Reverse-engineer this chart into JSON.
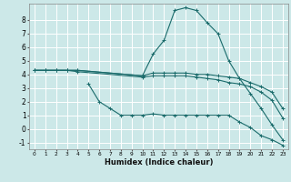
{
  "title": "",
  "xlabel": "Humidex (Indice chaleur)",
  "ylabel": "",
  "background_color": "#cce8e8",
  "grid_color": "#ffffff",
  "line_color": "#1a6b6b",
  "xlim": [
    -0.5,
    23.5
  ],
  "ylim": [
    -1.5,
    9.2
  ],
  "yticks": [
    -1,
    0,
    1,
    2,
    3,
    4,
    5,
    6,
    7,
    8
  ],
  "xticks": [
    0,
    1,
    2,
    3,
    4,
    5,
    6,
    7,
    8,
    9,
    10,
    11,
    12,
    13,
    14,
    15,
    16,
    17,
    18,
    19,
    20,
    21,
    22,
    23
  ],
  "series": [
    {
      "x": [
        0,
        1,
        2,
        3,
        4,
        10,
        11,
        12,
        13,
        14,
        15,
        16,
        17,
        18,
        19,
        20,
        21,
        22,
        23
      ],
      "y": [
        4.3,
        4.3,
        4.3,
        4.3,
        4.3,
        3.9,
        5.5,
        6.5,
        8.7,
        8.9,
        8.7,
        7.8,
        7.0,
        5.0,
        3.7,
        2.6,
        1.5,
        0.3,
        -0.8
      ]
    },
    {
      "x": [
        0,
        1,
        2,
        3,
        4,
        10,
        11,
        12,
        13,
        14,
        15,
        16,
        17,
        18,
        19,
        20,
        21,
        22,
        23
      ],
      "y": [
        4.3,
        4.3,
        4.3,
        4.3,
        4.3,
        3.9,
        4.1,
        4.1,
        4.1,
        4.1,
        4.0,
        4.0,
        3.9,
        3.8,
        3.7,
        3.4,
        3.1,
        2.7,
        1.5
      ]
    },
    {
      "x": [
        0,
        1,
        2,
        3,
        4,
        10,
        11,
        12,
        13,
        14,
        15,
        16,
        17,
        18,
        19,
        20,
        21,
        22,
        23
      ],
      "y": [
        4.3,
        4.3,
        4.3,
        4.3,
        4.2,
        3.8,
        3.9,
        3.9,
        3.9,
        3.9,
        3.8,
        3.7,
        3.6,
        3.4,
        3.3,
        3.1,
        2.7,
        2.1,
        0.8
      ]
    },
    {
      "x": [
        5,
        6,
        7,
        8,
        9,
        10,
        11,
        12,
        13,
        14,
        15,
        16,
        17,
        18,
        19,
        20,
        21,
        22,
        23
      ],
      "y": [
        3.3,
        2.0,
        1.5,
        1.0,
        1.0,
        1.0,
        1.1,
        1.0,
        1.0,
        1.0,
        1.0,
        1.0,
        1.0,
        1.0,
        0.5,
        0.1,
        -0.5,
        -0.8,
        -1.2
      ]
    }
  ]
}
